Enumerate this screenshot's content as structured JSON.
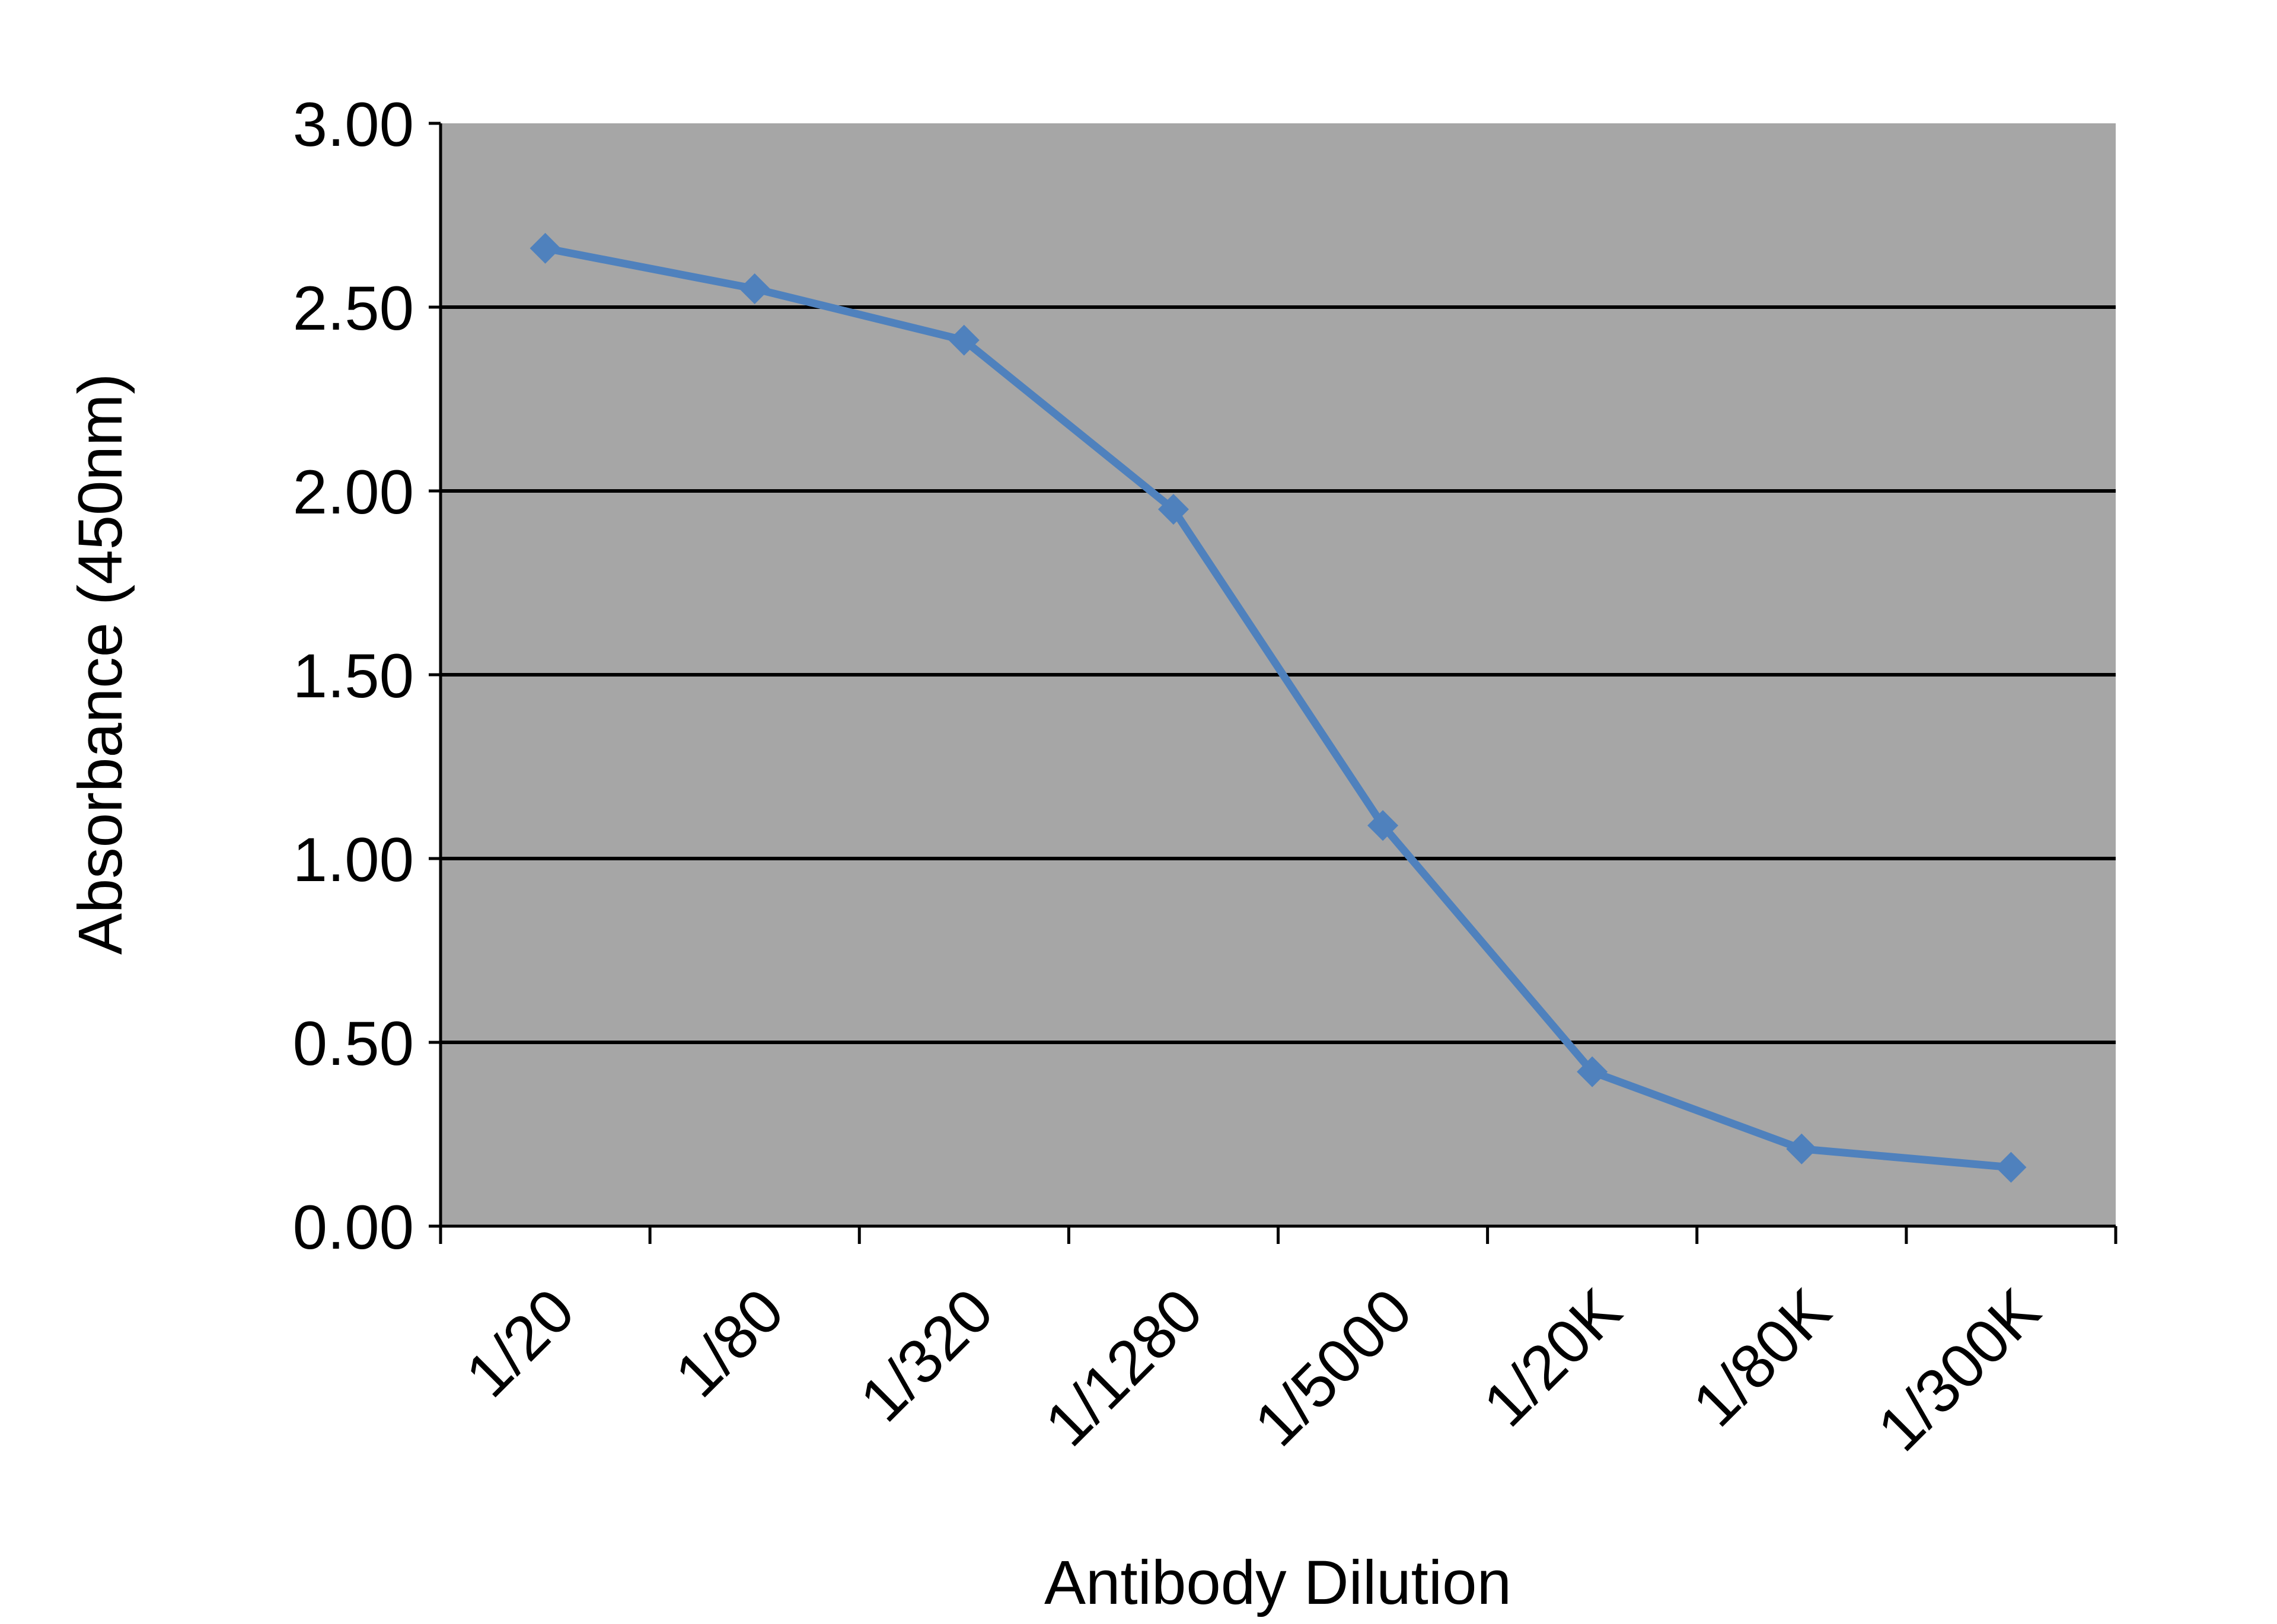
{
  "chart_data": {
    "type": "line",
    "title": "",
    "xlabel": "Antibody Dilution",
    "ylabel": "Absorbance (450nm)",
    "categories": [
      "1/20",
      "1/80",
      "1/320",
      "1/1280",
      "1/5000",
      "1/20K",
      "1/80K",
      "1/300K"
    ],
    "series": [
      {
        "values": [
          2.66,
          2.55,
          2.41,
          1.95,
          1.09,
          0.42,
          0.21,
          0.16
        ]
      }
    ],
    "yticks": [
      "0.00",
      "0.50",
      "1.00",
      "1.50",
      "2.00",
      "2.50",
      "3.00"
    ],
    "ylim": [
      0,
      3
    ],
    "grid": "horizontal",
    "legend": "none",
    "colors": {
      "plot_background": "#A6A6A6",
      "line": "#4F81BD",
      "gridline": "#000000",
      "axis": "#000000"
    }
  }
}
